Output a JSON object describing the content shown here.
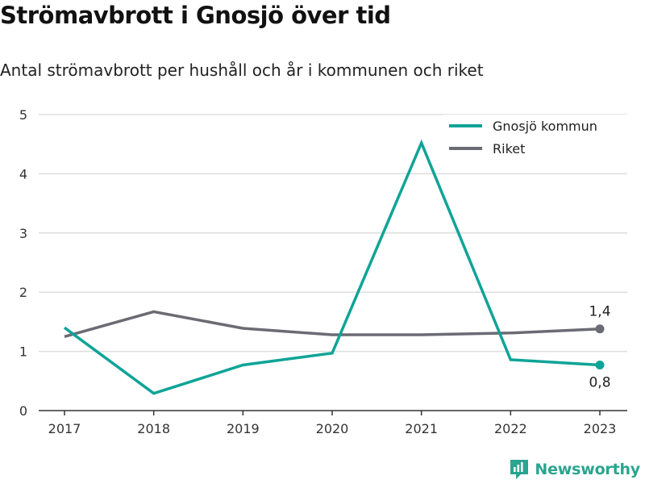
{
  "title": "Strömavbrott i Gnosjö över tid",
  "subtitle": "Antal strömavbrott per hushåll och år i kommunen och riket",
  "brand": {
    "name": "Newsworthy",
    "icon": "newsworthy-logo-icon",
    "color": "#2aa58f"
  },
  "chart_data": {
    "type": "line",
    "x": [
      "2017",
      "2018",
      "2019",
      "2020",
      "2021",
      "2022",
      "2023"
    ],
    "ylim": [
      0,
      5
    ],
    "yticks": [
      "0",
      "1",
      "2",
      "3",
      "4",
      "5"
    ],
    "grid": true,
    "legend_position": "top-right",
    "series": [
      {
        "name": "Gnosjö kommun",
        "color": "#0fa497",
        "values": [
          1.4,
          0.29,
          0.77,
          0.97,
          4.52,
          0.86,
          0.77
        ],
        "end_label": "0,8",
        "end_label_position": "below"
      },
      {
        "name": "Riket",
        "color": "#6b6b74",
        "values": [
          1.25,
          1.67,
          1.39,
          1.28,
          1.28,
          1.31,
          1.38
        ],
        "end_label": "1,4",
        "end_label_position": "above"
      }
    ]
  }
}
